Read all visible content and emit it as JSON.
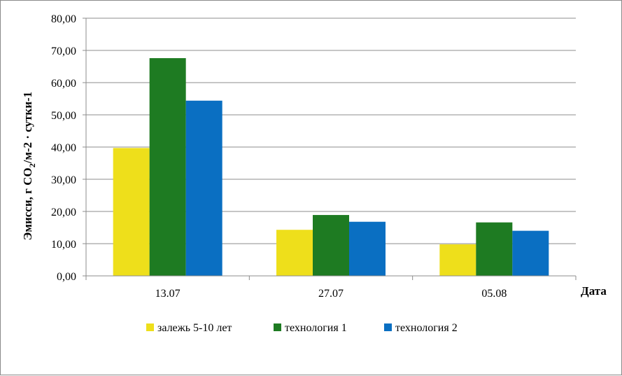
{
  "chart_data": {
    "type": "bar",
    "categories": [
      "13.07",
      "27.07",
      "05.08"
    ],
    "series": [
      {
        "name": "залежь 5-10 лет",
        "color": "#eedf1b",
        "values": [
          39.7,
          14.3,
          9.8
        ]
      },
      {
        "name": "технология 1",
        "color": "#1e7b22",
        "values": [
          67.6,
          18.9,
          16.6
        ]
      },
      {
        "name": "технология 2",
        "color": "#0a6fc2",
        "values": [
          54.4,
          16.8,
          14.0
        ]
      }
    ],
    "ylim": [
      0,
      80
    ],
    "yticks": [
      "0,00",
      "10,00",
      "20,00",
      "30,00",
      "40,00",
      "50,00",
      "60,00",
      "70,00",
      "80,00"
    ],
    "ylabel_parts": {
      "main": "Эмисси, г CO",
      "sub": "2",
      "rest": "/м-2 · сутки-1"
    },
    "xlabel": "Дата",
    "grid": true,
    "legend_position": "bottom"
  }
}
